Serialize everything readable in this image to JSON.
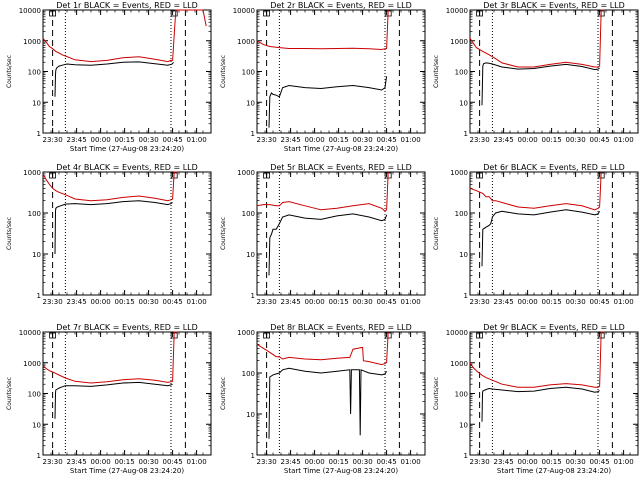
{
  "chart_data": [
    {
      "type": "line",
      "title": "Det 1r BLACK = Events, RED = LLD",
      "xlabel": "Start Time (27-Aug-08 23:24:20)",
      "ylabel": "Counts/sec",
      "yscale": "log",
      "ylim": [
        1,
        10000
      ],
      "xlim": [
        0,
        105
      ],
      "x_tick_positions": [
        6,
        21,
        36,
        51,
        66,
        81,
        96
      ],
      "x_tick_labels": [
        "23:30",
        "23:45",
        "00:00",
        "00:15",
        "00:30",
        "00:45",
        "01:00"
      ],
      "y_tick_values": [
        1,
        10,
        100,
        1000,
        10000
      ],
      "y_tick_labels": [
        "1",
        "10",
        "100",
        "1000",
        "10000"
      ],
      "vlines_dashed": [
        6,
        89
      ],
      "vlines_dotted": [
        14,
        80
      ],
      "series": [
        {
          "color": "#000000",
          "x": [
            7.5,
            7.8,
            8,
            8.5,
            10,
            12,
            13,
            15,
            20,
            30,
            40,
            50,
            60,
            70,
            78,
            80,
            81,
            81.5
          ],
          "y": [
            15,
            80,
            110,
            130,
            150,
            160,
            165,
            175,
            165,
            160,
            175,
            200,
            205,
            180,
            160,
            170,
            180,
            200
          ]
        },
        {
          "color": "#cc0000",
          "x": [
            0,
            2,
            4,
            6,
            8,
            10,
            12,
            14,
            20,
            30,
            40,
            50,
            60,
            70,
            78,
            80,
            81,
            83,
            85,
            90,
            95,
            100,
            102
          ],
          "y": [
            1200,
            900,
            650,
            550,
            450,
            400,
            350,
            320,
            240,
            210,
            230,
            280,
            300,
            250,
            210,
            230,
            230,
            10000,
            10000,
            10000,
            10000,
            10000,
            3000
          ]
        }
      ]
    },
    {
      "type": "line",
      "title": "Det 2r BLACK = Events, RED = LLD",
      "xlabel": "Start Time (27-Aug-08 23:24:20)",
      "ylabel": "Counts/sec",
      "yscale": "log",
      "ylim": [
        1,
        10000
      ],
      "xlim": [
        0,
        105
      ],
      "x_tick_positions": [
        6,
        21,
        36,
        51,
        66,
        81,
        96
      ],
      "x_tick_labels": [
        "23:30",
        "23:45",
        "00:00",
        "00:15",
        "00:30",
        "00:45",
        "01:00"
      ],
      "y_tick_values": [
        1,
        10,
        100,
        1000,
        10000
      ],
      "y_tick_labels": [
        "1",
        "10",
        "100",
        "1000",
        "10000"
      ],
      "vlines_dashed": [
        6,
        89
      ],
      "vlines_dotted": [
        14,
        80
      ],
      "series": [
        {
          "color": "#000000",
          "x": [
            7.5,
            8,
            9,
            10,
            12,
            14,
            16,
            20,
            30,
            40,
            50,
            60,
            70,
            78,
            80,
            81
          ],
          "y": [
            1.5,
            15,
            20,
            18,
            17,
            15,
            30,
            35,
            30,
            28,
            32,
            35,
            30,
            25,
            30,
            70
          ]
        },
        {
          "color": "#cc0000",
          "x": [
            0,
            4,
            8,
            14,
            20,
            30,
            40,
            50,
            60,
            70,
            78,
            80,
            81,
            82
          ],
          "y": [
            1000,
            750,
            650,
            600,
            560,
            560,
            550,
            560,
            570,
            550,
            520,
            550,
            560,
            10000
          ]
        }
      ]
    },
    {
      "type": "line",
      "title": "Det 3r BLACK = Events, RED = LLD",
      "xlabel": "",
      "ylabel": "Counts/sec",
      "yscale": "log",
      "ylim": [
        1,
        10000
      ],
      "xlim": [
        0,
        105
      ],
      "x_tick_positions": [
        6,
        21,
        36,
        51,
        66,
        81,
        96
      ],
      "x_tick_labels": [
        "23:30",
        "23:45",
        "00:00",
        "00:15",
        "00:30",
        "00:45",
        "01:00"
      ],
      "y_tick_values": [
        1,
        10,
        100,
        1000,
        10000
      ],
      "y_tick_labels": [
        "1",
        "10",
        "100",
        "1000",
        "10000"
      ],
      "vlines_dashed": [
        6,
        89
      ],
      "vlines_dotted": [
        14,
        80
      ],
      "series": [
        {
          "color": "#000000",
          "x": [
            7.5,
            8,
            8.5,
            10,
            12,
            14,
            20,
            30,
            40,
            50,
            60,
            70,
            78,
            80,
            81
          ],
          "y": [
            8,
            150,
            180,
            190,
            185,
            175,
            140,
            120,
            125,
            150,
            170,
            145,
            115,
            120,
            130
          ]
        },
        {
          "color": "#cc0000",
          "x": [
            0,
            4,
            8,
            12,
            16,
            20,
            30,
            40,
            50,
            60,
            70,
            78,
            80,
            81,
            82,
            84
          ],
          "y": [
            1200,
            600,
            450,
            350,
            260,
            190,
            140,
            140,
            170,
            200,
            170,
            140,
            140,
            150,
            10000,
            10000
          ]
        }
      ]
    },
    {
      "type": "line",
      "title": "Det 4r BLACK = Events, RED = LLD",
      "xlabel": "",
      "ylabel": "Counts/sec",
      "yscale": "log",
      "ylim": [
        1,
        1000
      ],
      "xlim": [
        0,
        105
      ],
      "x_tick_positions": [
        6,
        21,
        36,
        51,
        66,
        81,
        96
      ],
      "x_tick_labels": [
        "23:30",
        "23:45",
        "00:00",
        "00:15",
        "00:30",
        "00:45",
        "01:00"
      ],
      "y_tick_values": [
        1,
        10,
        100,
        1000
      ],
      "y_tick_labels": [
        "1",
        "10",
        "100",
        "1000"
      ],
      "vlines_dashed": [
        6,
        89
      ],
      "vlines_dotted": [
        14,
        80
      ],
      "series": [
        {
          "color": "#000000",
          "x": [
            7.5,
            7.8,
            8,
            9,
            11,
            14,
            20,
            30,
            40,
            50,
            60,
            70,
            78,
            80,
            81
          ],
          "y": [
            10,
            110,
            130,
            140,
            150,
            165,
            170,
            160,
            170,
            190,
            200,
            180,
            160,
            170,
            180
          ]
        },
        {
          "color": "#cc0000",
          "x": [
            0,
            2,
            4,
            6,
            8,
            10,
            14,
            20,
            30,
            40,
            50,
            60,
            70,
            78,
            80,
            81,
            82,
            84
          ],
          "y": [
            900,
            650,
            500,
            400,
            350,
            320,
            280,
            220,
            200,
            210,
            240,
            260,
            230,
            200,
            210,
            220,
            1000,
            1000
          ]
        }
      ]
    },
    {
      "type": "line",
      "title": "Det 5r BLACK = Events, RED = LLD",
      "xlabel": "",
      "ylabel": "Counts/sec",
      "yscale": "log",
      "ylim": [
        1,
        1000
      ],
      "xlim": [
        0,
        105
      ],
      "x_tick_positions": [
        6,
        21,
        36,
        51,
        66,
        81,
        96
      ],
      "x_tick_labels": [
        "23:30",
        "23:45",
        "00:00",
        "00:15",
        "00:30",
        "00:45",
        "01:00"
      ],
      "y_tick_values": [
        1,
        10,
        100,
        1000
      ],
      "y_tick_labels": [
        "1",
        "10",
        "100",
        "1000"
      ],
      "vlines_dashed": [
        6,
        89
      ],
      "vlines_dotted": [
        14,
        80
      ],
      "series": [
        {
          "color": "#000000",
          "x": [
            7.5,
            8,
            9,
            10,
            12,
            14,
            16,
            20,
            30,
            40,
            50,
            60,
            70,
            78,
            80,
            81
          ],
          "y": [
            3,
            25,
            30,
            40,
            40,
            55,
            80,
            90,
            75,
            70,
            85,
            95,
            80,
            65,
            70,
            90
          ]
        },
        {
          "color": "#cc0000",
          "x": [
            0,
            4,
            8,
            12,
            14,
            16,
            20,
            30,
            40,
            50,
            60,
            70,
            78,
            80,
            81,
            82
          ],
          "y": [
            150,
            160,
            160,
            150,
            150,
            180,
            190,
            150,
            120,
            130,
            150,
            170,
            130,
            110,
            120,
            1000
          ]
        }
      ]
    },
    {
      "type": "line",
      "title": "Det 6r BLACK = Events, RED = LLD",
      "xlabel": "",
      "ylabel": "Counts/sec",
      "yscale": "log",
      "ylim": [
        1,
        1000
      ],
      "xlim": [
        0,
        105
      ],
      "x_tick_positions": [
        6,
        21,
        36,
        51,
        66,
        81,
        96
      ],
      "x_tick_labels": [
        "23:30",
        "23:45",
        "00:00",
        "00:15",
        "00:30",
        "00:45",
        "01:00"
      ],
      "y_tick_values": [
        1,
        10,
        100,
        1000
      ],
      "y_tick_labels": [
        "1",
        "10",
        "100",
        "1000"
      ],
      "vlines_dashed": [
        6,
        89
      ],
      "vlines_dotted": [
        14,
        80
      ],
      "series": [
        {
          "color": "#000000",
          "x": [
            7.5,
            8,
            10,
            12,
            13,
            14,
            16,
            20,
            30,
            40,
            50,
            60,
            70,
            78,
            80,
            81
          ],
          "y": [
            5,
            40,
            45,
            50,
            55,
            80,
            100,
            110,
            95,
            90,
            105,
            120,
            105,
            90,
            95,
            110
          ]
        },
        {
          "color": "#cc0000",
          "x": [
            0,
            4,
            8,
            10,
            12,
            14,
            16,
            20,
            30,
            40,
            50,
            60,
            70,
            78,
            80,
            81,
            82
          ],
          "y": [
            400,
            350,
            300,
            250,
            250,
            200,
            200,
            180,
            140,
            130,
            150,
            170,
            150,
            120,
            130,
            140,
            1000
          ]
        }
      ]
    },
    {
      "type": "line",
      "title": "Det 7r BLACK = Events, RED = LLD",
      "xlabel": "Start Time (27-Aug-08 23:24:20)",
      "ylabel": "Counts/sec",
      "yscale": "log",
      "ylim": [
        1,
        10000
      ],
      "xlim": [
        0,
        105
      ],
      "x_tick_positions": [
        6,
        21,
        36,
        51,
        66,
        81,
        96
      ],
      "x_tick_labels": [
        "23:30",
        "23:45",
        "00:00",
        "00:15",
        "00:30",
        "00:45",
        "01:00"
      ],
      "y_tick_values": [
        1,
        10,
        100,
        1000,
        10000
      ],
      "y_tick_labels": [
        "1",
        "10",
        "100",
        "1000",
        "10000"
      ],
      "vlines_dashed": [
        6,
        89
      ],
      "vlines_dotted": [
        14,
        80
      ],
      "series": [
        {
          "color": "#000000",
          "x": [
            7.5,
            7.8,
            8,
            10,
            12,
            14,
            20,
            30,
            40,
            50,
            60,
            70,
            78,
            80,
            81
          ],
          "y": [
            15,
            100,
            130,
            150,
            165,
            180,
            180,
            170,
            190,
            220,
            230,
            200,
            180,
            190,
            200
          ]
        },
        {
          "color": "#cc0000",
          "x": [
            0,
            2,
            4,
            6,
            8,
            10,
            14,
            20,
            30,
            40,
            50,
            60,
            70,
            78,
            80,
            81,
            82,
            84
          ],
          "y": [
            800,
            650,
            550,
            500,
            450,
            400,
            320,
            250,
            220,
            240,
            280,
            300,
            270,
            230,
            240,
            250,
            10000,
            10000
          ]
        }
      ]
    },
    {
      "type": "line",
      "title": "Det 8r BLACK = Events, RED = LLD",
      "xlabel": "Start Time (27-Aug-08 23:24:20)",
      "ylabel": "Counts/sec",
      "yscale": "log",
      "ylim": [
        1,
        1000
      ],
      "xlim": [
        0,
        105
      ],
      "x_tick_positions": [
        6,
        21,
        36,
        51,
        66,
        81,
        96
      ],
      "x_tick_labels": [
        "23:30",
        "23:45",
        "00:00",
        "00:15",
        "00:30",
        "00:45",
        "01:00"
      ],
      "y_tick_values": [
        1,
        10,
        100,
        1000
      ],
      "y_tick_labels": [
        "1",
        "10",
        "100",
        "1000"
      ],
      "vlines_dashed": [
        6,
        89
      ],
      "vlines_dotted": [
        14,
        80
      ],
      "series": [
        {
          "color": "#000000",
          "x": [
            7.5,
            8,
            10,
            12,
            14,
            16,
            20,
            30,
            40,
            50,
            58,
            58.5,
            59,
            64,
            64.5,
            65,
            70,
            78,
            80,
            81
          ],
          "y": [
            2.5,
            80,
            90,
            95,
            100,
            120,
            130,
            110,
            100,
            110,
            120,
            10,
            120,
            120,
            3,
            120,
            100,
            90,
            95,
            110
          ]
        },
        {
          "color": "#cc0000",
          "x": [
            0,
            4,
            8,
            12,
            14,
            16,
            20,
            30,
            40,
            50,
            58,
            60,
            66,
            66.5,
            70,
            78,
            80,
            81,
            82
          ],
          "y": [
            500,
            400,
            320,
            250,
            250,
            220,
            240,
            220,
            210,
            230,
            240,
            380,
            420,
            200,
            190,
            160,
            170,
            180,
            1000
          ]
        }
      ]
    },
    {
      "type": "line",
      "title": "Det 9r BLACK = Events, RED = LLD",
      "xlabel": "Start Time (27-Aug-08 23:24:20)",
      "ylabel": "Counts/sec",
      "yscale": "log",
      "ylim": [
        1,
        10000
      ],
      "xlim": [
        0,
        105
      ],
      "x_tick_positions": [
        6,
        21,
        36,
        51,
        66,
        81,
        96
      ],
      "x_tick_labels": [
        "23:30",
        "23:45",
        "00:00",
        "00:15",
        "00:30",
        "00:45",
        "01:00"
      ],
      "y_tick_values": [
        1,
        10,
        100,
        1000,
        10000
      ],
      "y_tick_labels": [
        "1",
        "10",
        "100",
        "1000",
        "10000"
      ],
      "vlines_dashed": [
        6,
        89
      ],
      "vlines_dotted": [
        14,
        80
      ],
      "series": [
        {
          "color": "#000000",
          "x": [
            7.5,
            7.8,
            8,
            10,
            12,
            14,
            20,
            30,
            40,
            50,
            60,
            70,
            78,
            80,
            81
          ],
          "y": [
            12,
            100,
            120,
            135,
            145,
            140,
            130,
            115,
            120,
            145,
            160,
            140,
            110,
            115,
            125
          ]
        },
        {
          "color": "#cc0000",
          "x": [
            0,
            2,
            4,
            6,
            8,
            10,
            14,
            20,
            30,
            40,
            50,
            60,
            70,
            78,
            80,
            81,
            82,
            84
          ],
          "y": [
            1000,
            700,
            550,
            450,
            380,
            330,
            270,
            200,
            160,
            160,
            190,
            210,
            190,
            160,
            160,
            170,
            10000,
            10000
          ]
        }
      ]
    }
  ]
}
